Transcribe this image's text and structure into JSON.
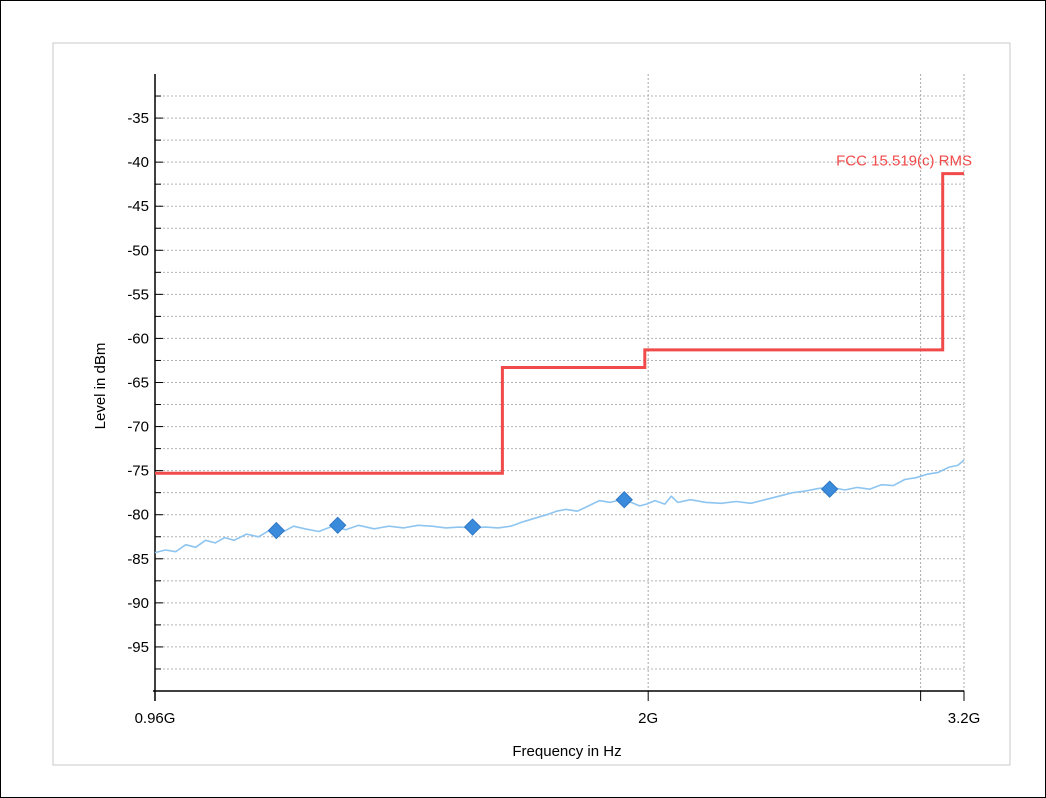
{
  "chart_data": {
    "type": "line",
    "xlabel": "Frequency in Hz",
    "ylabel": "Level in dBm",
    "x_scale": "log",
    "xlim_hz": [
      960000000,
      3200000000
    ],
    "ylim": [
      -100,
      -30
    ],
    "x_ticks": [
      {
        "value": 960000000,
        "label": "0.96G"
      },
      {
        "value": 2000000000,
        "label": "2G"
      },
      {
        "value": 3200000000,
        "label": "3.2G"
      }
    ],
    "x_gridlines_hz": [
      2000000000,
      3000000000,
      3200000000
    ],
    "y_ticks": [
      -35,
      -40,
      -45,
      -50,
      -55,
      -60,
      -65,
      -70,
      -75,
      -80,
      -85,
      -90,
      -95
    ],
    "y_minor_step": 2.5,
    "grid": true,
    "limit_line": {
      "name": "FCC 15.519(c) RMS",
      "color": "#f04a4a",
      "points": [
        [
          960000000,
          -75.3
        ],
        [
          1610000000,
          -75.3
        ],
        [
          1610000000,
          -63.3
        ],
        [
          1990000000,
          -63.3
        ],
        [
          1990000000,
          -61.3
        ],
        [
          3100000000,
          -61.3
        ],
        [
          3100000000,
          -41.3
        ],
        [
          3200000000,
          -41.3
        ]
      ]
    },
    "trace": {
      "color": "#8ec5f0",
      "points": [
        [
          960000000,
          -84.3
        ],
        [
          975000000,
          -84.0
        ],
        [
          990000000,
          -84.2
        ],
        [
          1005000000,
          -83.4
        ],
        [
          1020000000,
          -83.7
        ],
        [
          1035000000,
          -82.9
        ],
        [
          1050000000,
          -83.2
        ],
        [
          1065000000,
          -82.6
        ],
        [
          1080000000,
          -82.9
        ],
        [
          1100000000,
          -82.2
        ],
        [
          1120000000,
          -82.5
        ],
        [
          1140000000,
          -81.7
        ],
        [
          1160000000,
          -82.0
        ],
        [
          1180000000,
          -81.3
        ],
        [
          1200000000,
          -81.6
        ],
        [
          1225000000,
          -81.9
        ],
        [
          1250000000,
          -81.3
        ],
        [
          1275000000,
          -81.7
        ],
        [
          1300000000,
          -81.2
        ],
        [
          1330000000,
          -81.6
        ],
        [
          1360000000,
          -81.3
        ],
        [
          1390000000,
          -81.5
        ],
        [
          1420000000,
          -81.2
        ],
        [
          1450000000,
          -81.3
        ],
        [
          1480000000,
          -81.5
        ],
        [
          1510000000,
          -81.4
        ],
        [
          1540000000,
          -81.5
        ],
        [
          1570000000,
          -81.4
        ],
        [
          1600000000,
          -81.5
        ],
        [
          1630000000,
          -81.3
        ],
        [
          1660000000,
          -80.8
        ],
        [
          1690000000,
          -80.4
        ],
        [
          1720000000,
          -80.0
        ],
        [
          1745000000,
          -79.6
        ],
        [
          1770000000,
          -79.4
        ],
        [
          1800000000,
          -79.6
        ],
        [
          1830000000,
          -79.0
        ],
        [
          1860000000,
          -78.4
        ],
        [
          1890000000,
          -78.6
        ],
        [
          1920000000,
          -78.3
        ],
        [
          1950000000,
          -78.6
        ],
        [
          1975000000,
          -79.0
        ],
        [
          1995000000,
          -78.8
        ],
        [
          2020000000,
          -78.4
        ],
        [
          2050000000,
          -78.8
        ],
        [
          2070000000,
          -77.9
        ],
        [
          2090000000,
          -78.6
        ],
        [
          2130000000,
          -78.3
        ],
        [
          2180000000,
          -78.6
        ],
        [
          2230000000,
          -78.7
        ],
        [
          2280000000,
          -78.5
        ],
        [
          2330000000,
          -78.7
        ],
        [
          2380000000,
          -78.3
        ],
        [
          2430000000,
          -77.9
        ],
        [
          2480000000,
          -77.5
        ],
        [
          2530000000,
          -77.3
        ],
        [
          2580000000,
          -77.0
        ],
        [
          2630000000,
          -76.9
        ],
        [
          2680000000,
          -77.2
        ],
        [
          2730000000,
          -76.9
        ],
        [
          2780000000,
          -77.1
        ],
        [
          2830000000,
          -76.6
        ],
        [
          2880000000,
          -76.7
        ],
        [
          2930000000,
          -76.0
        ],
        [
          2980000000,
          -75.8
        ],
        [
          3030000000,
          -75.4
        ],
        [
          3080000000,
          -75.2
        ],
        [
          3130000000,
          -74.6
        ],
        [
          3170000000,
          -74.4
        ],
        [
          3200000000,
          -73.8
        ]
      ]
    },
    "markers": {
      "color": "#3a8bdc",
      "points": [
        [
          1150000000,
          -81.8
        ],
        [
          1260000000,
          -81.2
        ],
        [
          1540000000,
          -81.4
        ],
        [
          1930000000,
          -78.3
        ],
        [
          2620000000,
          -77.1
        ]
      ]
    }
  }
}
